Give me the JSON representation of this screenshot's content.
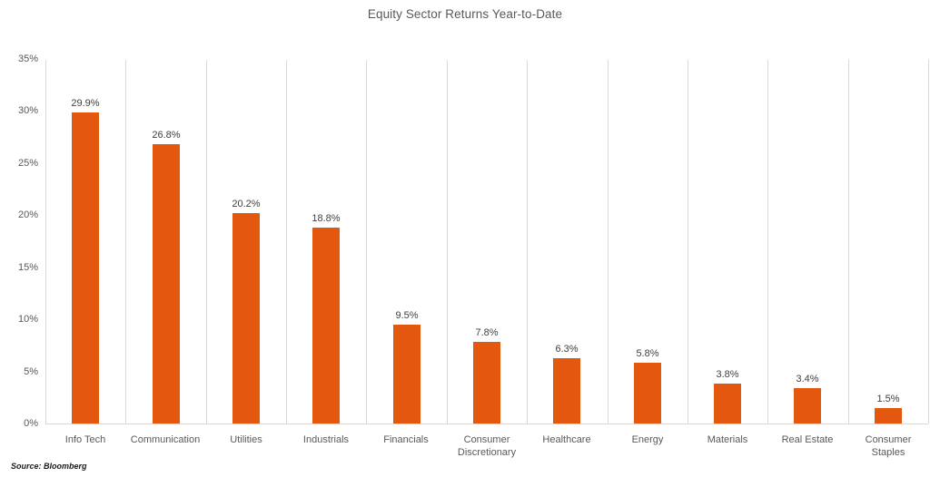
{
  "title": "Equity Sector Returns Year-to-Date",
  "source_note": "Source: Bloomberg",
  "colors": {
    "bar": "#e4570e",
    "gridline": "#d9d9d9",
    "axis_line": "#d6d6d6",
    "title_text": "#595959",
    "axis_text": "#595959",
    "value_label_text": "#404040",
    "source_text": "#1a1a1a",
    "background": "#ffffff"
  },
  "chart_data": {
    "type": "bar",
    "title": "Equity Sector Returns Year-to-Date",
    "categories": [
      "Info Tech",
      "Communication",
      "Utilities",
      "Industrials",
      "Financials",
      "Consumer Discretionary",
      "Healthcare",
      "Energy",
      "Materials",
      "Real Estate",
      "Consumer Staples"
    ],
    "values": [
      29.9,
      26.8,
      20.2,
      18.8,
      9.5,
      7.8,
      6.3,
      5.8,
      3.8,
      3.4,
      1.5
    ],
    "data_labels": [
      "29.9%",
      "26.8%",
      "20.2%",
      "18.8%",
      "9.5%",
      "7.8%",
      "6.3%",
      "5.8%",
      "3.8%",
      "3.4%",
      "1.5%"
    ],
    "xlabel": "",
    "ylabel": "",
    "ylim": [
      0,
      35
    ],
    "ytick_step": 5,
    "ytick_labels": [
      "0%",
      "5%",
      "10%",
      "15%",
      "20%",
      "25%",
      "30%",
      "35%"
    ],
    "grid": "vertical-category-separators",
    "legend": "none",
    "bar_orientation": "vertical",
    "data_labels_position": "above-bar"
  }
}
